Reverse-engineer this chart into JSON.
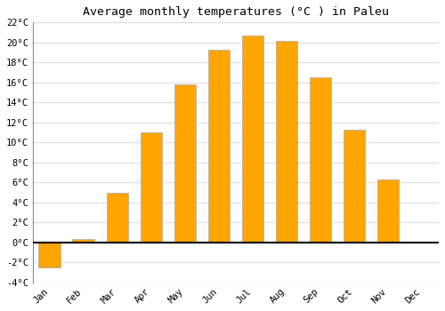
{
  "title": "Average monthly temperatures (°C ) in Paleu",
  "months": [
    "Jan",
    "Feb",
    "Mar",
    "Apr",
    "May",
    "Jun",
    "Jul",
    "Aug",
    "Sep",
    "Oct",
    "Nov",
    "Dec"
  ],
  "values": [
    -2.5,
    0.3,
    5.0,
    11.0,
    15.8,
    19.3,
    20.7,
    20.2,
    16.5,
    11.3,
    6.3,
    0.0
  ],
  "bar_color": "#FFA500",
  "bar_edge_color": "#aaaaaa",
  "background_color": "#ffffff",
  "grid_color": "#dddddd",
  "ylim": [
    -4,
    22
  ],
  "yticks": [
    -4,
    -2,
    0,
    2,
    4,
    6,
    8,
    10,
    12,
    14,
    16,
    18,
    20,
    22
  ],
  "title_fontsize": 9.5,
  "tick_fontsize": 7.5,
  "bar_width": 0.65
}
